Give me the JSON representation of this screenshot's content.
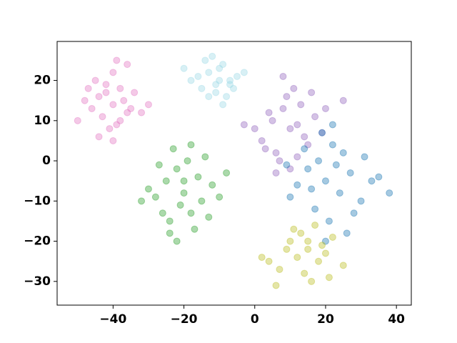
{
  "chart_data": {
    "type": "scatter",
    "xlim": [
      -55.8,
      44.2
    ],
    "ylim": [
      -35.9,
      29.7
    ],
    "xticks": [
      {
        "value": -40,
        "label": "−40"
      },
      {
        "value": -20,
        "label": "−20"
      },
      0,
      20,
      40
    ],
    "yticks": [
      {
        "value": -30,
        "label": "−30"
      },
      {
        "value": -20,
        "label": "−20"
      },
      {
        "value": -10,
        "label": "−10"
      },
      0,
      10,
      20
    ],
    "alpha": 0.4,
    "series": [
      {
        "color": "#e377c2",
        "x": [
          -40,
          -44,
          -36,
          -42,
          -38,
          -46,
          -34,
          -40,
          -48,
          -41,
          -37,
          -43,
          -39,
          -35,
          -45,
          -50,
          -32,
          -40,
          -38,
          -42,
          -44,
          -36,
          -30,
          -47,
          -39
        ],
        "y": [
          14,
          16,
          12,
          19,
          10,
          13,
          17,
          22,
          15,
          8,
          15,
          11,
          25,
          13,
          20,
          10,
          12,
          5,
          18,
          17,
          6,
          24,
          14,
          18,
          9
        ]
      },
      {
        "color": "#9edae5",
        "x": [
          -10,
          -13,
          -7,
          -11,
          -15,
          -9,
          -5,
          -12,
          -8,
          -16,
          -10,
          -6,
          -14,
          -18,
          -9,
          -11,
          -3,
          -13,
          -7,
          -20
        ],
        "y": [
          20,
          22,
          19,
          17,
          18,
          24,
          21,
          26,
          16,
          21,
          23,
          18,
          25,
          20,
          14,
          19,
          22,
          16,
          20,
          23
        ]
      },
      {
        "color": "#9467bd",
        "x": [
          10,
          5,
          14,
          8,
          2,
          12,
          17,
          6,
          9,
          0,
          15,
          11,
          4,
          19,
          7,
          13,
          3,
          20,
          10,
          -3,
          16,
          8,
          25,
          6,
          12
        ],
        "y": [
          8,
          10,
          6,
          13,
          5,
          9,
          11,
          2,
          16,
          8,
          4,
          18,
          12,
          7,
          0,
          14,
          3,
          13,
          -2,
          9,
          17,
          21,
          15,
          -3,
          1
        ]
      },
      {
        "color": "#1f77b4",
        "x": [
          20,
          15,
          24,
          18,
          27,
          22,
          12,
          30,
          17,
          25,
          21,
          33,
          10,
          19,
          28,
          23,
          14,
          35,
          26,
          16,
          22,
          31,
          9,
          20,
          38
        ],
        "y": [
          -5,
          -2,
          -8,
          0,
          -3,
          4,
          -6,
          -10,
          -12,
          2,
          -15,
          -5,
          -9,
          7,
          -13,
          -1,
          3,
          -4,
          -18,
          -7,
          9,
          1,
          -1,
          -20,
          -8
        ]
      },
      {
        "color": "#2ca02c",
        "x": [
          -20,
          -25,
          -15,
          -22,
          -18,
          -28,
          -12,
          -24,
          -19,
          -16,
          -30,
          -21,
          -14,
          -26,
          -23,
          -10,
          -17,
          -27,
          -20,
          -13,
          -24,
          -18,
          -32,
          -8,
          -22
        ],
        "y": [
          -8,
          -5,
          -10,
          -2,
          -13,
          -9,
          -6,
          -15,
          0,
          -4,
          -7,
          -11,
          1,
          -13,
          3,
          -9,
          -17,
          -1,
          -5,
          -14,
          -18,
          4,
          -10,
          -3,
          -20
        ]
      },
      {
        "color": "#bcbd22",
        "x": [
          15,
          10,
          18,
          13,
          20,
          7,
          16,
          12,
          22,
          9,
          17,
          4,
          14,
          19,
          11,
          25,
          6,
          15,
          21,
          2
        ],
        "y": [
          -22,
          -20,
          -25,
          -18,
          -23,
          -27,
          -30,
          -24,
          -19,
          -22,
          -16,
          -25,
          -28,
          -21,
          -17,
          -26,
          -31,
          -20,
          -29,
          -24
        ]
      }
    ]
  }
}
